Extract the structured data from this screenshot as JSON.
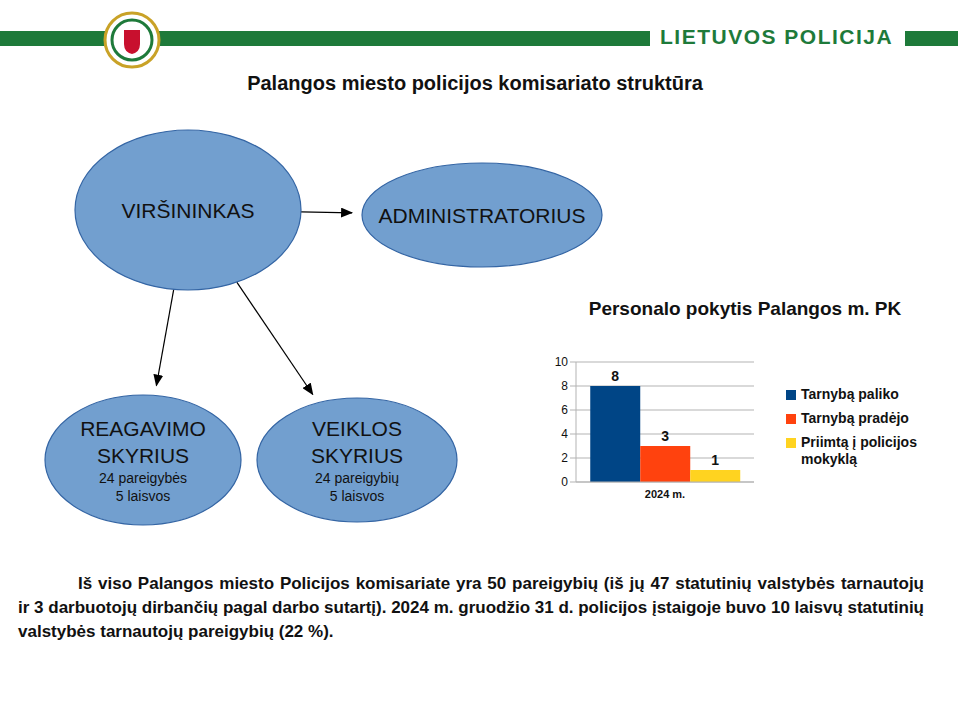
{
  "header": {
    "brand": "LIETUVOS POLICIJA"
  },
  "title": "Palangos miesto policijos komisariato struktūra",
  "nodes": [
    {
      "label": "VIRŠININKAS",
      "details": []
    },
    {
      "label": "ADMINISTRATORIUS",
      "details": []
    },
    {
      "label": "REAGAVIMO SKYRIUS",
      "details": [
        "24 pareigybės",
        "5 laisvos"
      ]
    },
    {
      "label": "VEIKLOS SKYRIUS",
      "details": [
        "24 pareigybių",
        "5 laisvos"
      ]
    }
  ],
  "edges": [
    {
      "from": "VIRŠININKAS",
      "to": "ADMINISTRATORIUS"
    },
    {
      "from": "VIRŠININKAS",
      "to": "REAGAVIMO SKYRIUS"
    },
    {
      "from": "VIRŠININKAS",
      "to": "VEIKLOS SKYRIUS"
    }
  ],
  "chart_data": {
    "type": "bar",
    "title": "Personalo pokytis Palangos m. PK",
    "categories": [
      "2024 m."
    ],
    "series": [
      {
        "name": "Tarnybą paliko",
        "color": "#004586",
        "values": [
          8
        ]
      },
      {
        "name": "Tarnybą pradėjo",
        "color": "#ff420e",
        "values": [
          3
        ]
      },
      {
        "name": "Priimtą į policijos mokyklą",
        "color": "#ffd320",
        "values": [
          1
        ]
      }
    ],
    "ylim": [
      0,
      10
    ],
    "yticks": [
      0,
      2,
      4,
      6,
      8,
      10
    ],
    "grid": true,
    "legend": "right",
    "data_labels": true
  },
  "paragraph": "Iš viso Palangos miesto Policijos komisariate yra 50 pareigybių (iš jų 47 statutinių valstybės tarnautojų ir 3 darbuotojų dirbančių pagal darbo sutartį). 2024 m. gruodžio 31 d. policijos įstaigoje buvo 10 laisvų statutinių valstybės tarnautojų pareigybių (22 %)."
}
